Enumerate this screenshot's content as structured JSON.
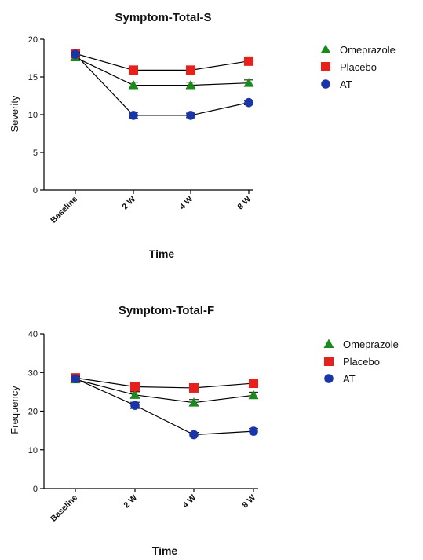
{
  "chart_data": [
    {
      "type": "line",
      "title": "Symptom-Total-S",
      "xlabel": "Time",
      "ylabel": "Severity",
      "categories": [
        "Baseline",
        "2 W",
        "4 W",
        "8 W"
      ],
      "ylim": [
        0,
        20
      ],
      "yticks": [
        "0",
        "5",
        "10",
        "15",
        "20"
      ],
      "legend_position": "right",
      "grid": false,
      "series": [
        {
          "name": "Omeprazole",
          "marker": "triangle",
          "color": "#1a8a1a",
          "values": [
            17.6,
            13.9,
            13.9,
            14.2
          ],
          "errors": [
            0.3,
            0.4,
            0.4,
            0.4
          ]
        },
        {
          "name": "Placebo",
          "marker": "square",
          "color": "#e8201c",
          "values": [
            18.1,
            15.9,
            15.9,
            17.1
          ],
          "errors": [
            0.3,
            0.4,
            0.4,
            0.5
          ]
        },
        {
          "name": "AT",
          "marker": "circle",
          "color": "#1a35a8",
          "values": [
            18.0,
            9.9,
            9.9,
            11.6
          ],
          "errors": [
            0.3,
            0.4,
            0.3,
            0.3
          ]
        }
      ]
    },
    {
      "type": "line",
      "title": "Symptom-Total-F",
      "xlabel": "Time",
      "ylabel": "Frequency",
      "categories": [
        "Baseline",
        "2 W",
        "4 W",
        "8 W"
      ],
      "ylim": [
        0,
        40
      ],
      "yticks": [
        "0",
        "10",
        "20",
        "30",
        "40"
      ],
      "legend_position": "right",
      "grid": false,
      "series": [
        {
          "name": "Omeprazole",
          "marker": "triangle",
          "color": "#1a8a1a",
          "values": [
            28.2,
            24.2,
            22.2,
            24.1
          ],
          "errors": [
            0.6,
            0.8,
            0.8,
            0.8
          ]
        },
        {
          "name": "Placebo",
          "marker": "square",
          "color": "#e8201c",
          "values": [
            28.6,
            26.3,
            26.0,
            27.2
          ],
          "errors": [
            0.6,
            0.9,
            0.9,
            1.0
          ]
        },
        {
          "name": "AT",
          "marker": "circle",
          "color": "#1a35a8",
          "values": [
            28.4,
            21.5,
            13.9,
            14.8
          ],
          "errors": [
            0.6,
            0.8,
            0.6,
            0.7
          ]
        }
      ]
    }
  ]
}
